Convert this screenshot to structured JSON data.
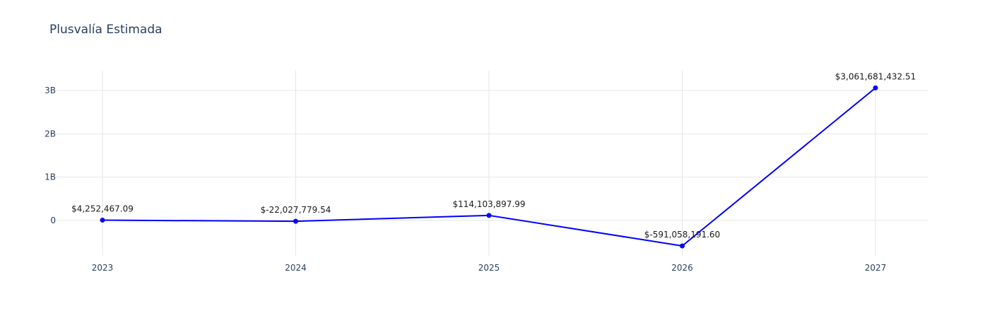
{
  "chart_data": {
    "type": "line",
    "title": "Plusvalía Estimada",
    "xlabel": "",
    "ylabel": "",
    "x": [
      "2023",
      "2024",
      "2025",
      "2026",
      "2027"
    ],
    "series": [
      {
        "values": [
          4252467.09,
          -22027779.54,
          114103897.99,
          -591058191.6,
          3061681432.51
        ],
        "labels": [
          "$4,252,467.09",
          "$-22,027,779.54",
          "$114,103,897.99",
          "$-591,058,191.60",
          "$3,061,681,432.51"
        ],
        "color": "#0000ff"
      }
    ],
    "y_ticks": [
      {
        "value": 0,
        "label": "0"
      },
      {
        "value": 1000000000,
        "label": "1B"
      },
      {
        "value": 2000000000,
        "label": "2B"
      },
      {
        "value": 3000000000,
        "label": "3B"
      }
    ],
    "ylim": [
      -820000000,
      3460000000
    ],
    "grid": true,
    "legend": "none"
  },
  "colors": {
    "grid": "#e6e6e6",
    "axis_text": "#2a3f5f",
    "line": "#0000ff"
  }
}
